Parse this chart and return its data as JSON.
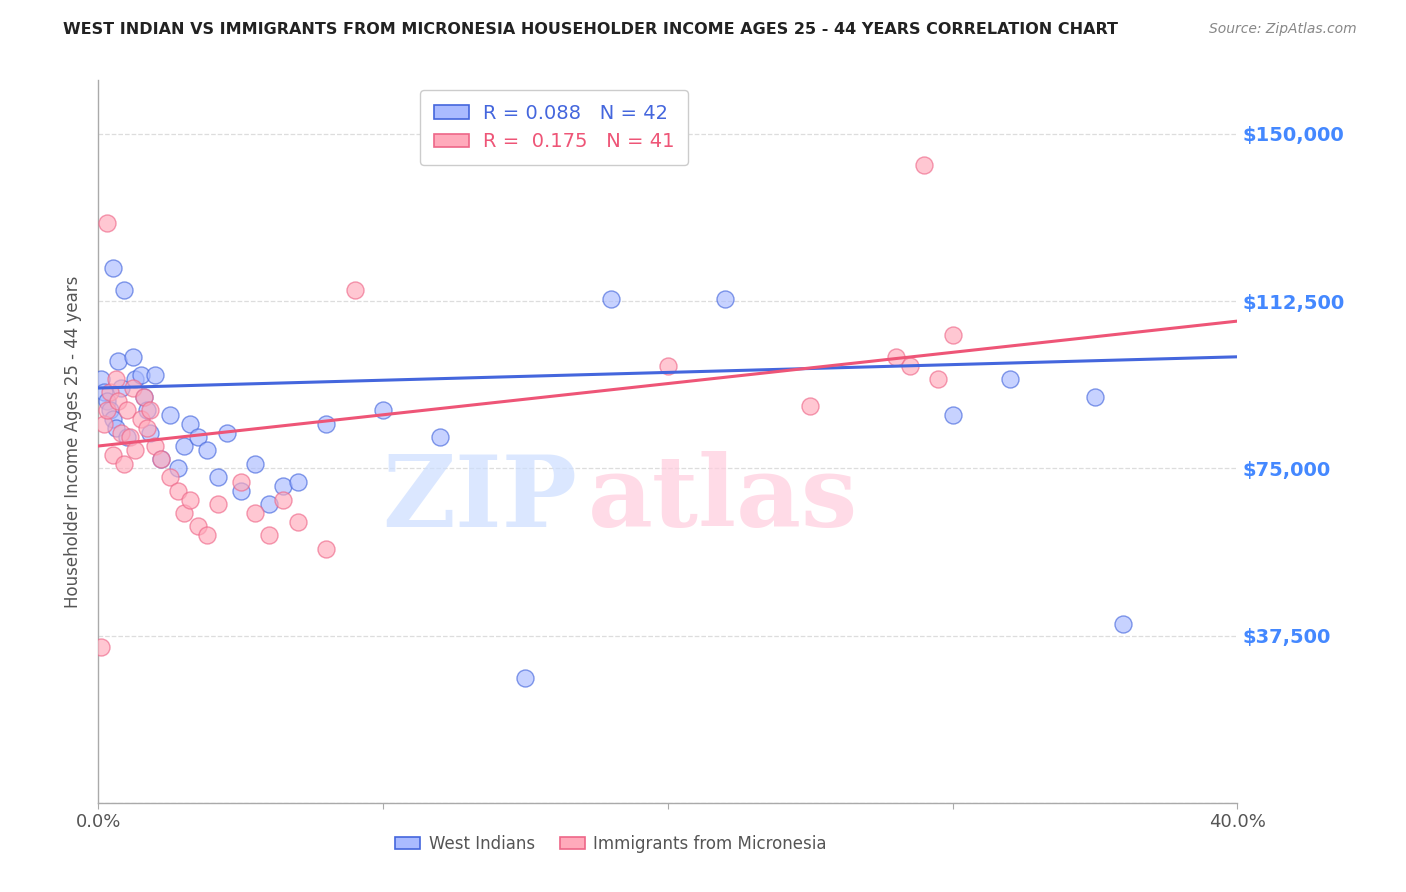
{
  "title": "WEST INDIAN VS IMMIGRANTS FROM MICRONESIA HOUSEHOLDER INCOME AGES 25 - 44 YEARS CORRELATION CHART",
  "source": "Source: ZipAtlas.com",
  "ylabel": "Householder Income Ages 25 - 44 years",
  "xlim": [
    0.0,
    0.4
  ],
  "ylim": [
    0,
    162000
  ],
  "yticks": [
    0,
    37500,
    75000,
    112500,
    150000
  ],
  "ytick_labels": [
    "",
    "$37,500",
    "$75,000",
    "$112,500",
    "$150,000"
  ],
  "xticks": [
    0.0,
    0.1,
    0.2,
    0.3,
    0.4
  ],
  "xtick_labels": [
    "0.0%",
    "",
    "",
    "",
    "40.0%"
  ],
  "blue_R": 0.088,
  "blue_N": 42,
  "pink_R": 0.175,
  "pink_N": 41,
  "blue_fill": "#aabbff",
  "pink_fill": "#ffaabb",
  "blue_edge": "#4466dd",
  "pink_edge": "#ee6688",
  "blue_line": "#4466dd",
  "pink_line": "#ee5577",
  "blue_label": "West Indians",
  "pink_label": "Immigrants from Micronesia",
  "bg": "#ffffff",
  "title_color": "#222222",
  "source_color": "#888888",
  "axis_label_color": "#555555",
  "tick_color": "#aaaaaa",
  "grid_color": "#dddddd",
  "right_tick_color": "#4488ff",
  "blue_x": [
    0.001,
    0.002,
    0.003,
    0.004,
    0.005,
    0.006,
    0.007,
    0.008,
    0.01,
    0.012,
    0.013,
    0.015,
    0.016,
    0.017,
    0.018,
    0.02,
    0.022,
    0.025,
    0.028,
    0.03,
    0.032,
    0.035,
    0.038,
    0.042,
    0.045,
    0.05,
    0.055,
    0.06,
    0.065,
    0.07,
    0.08,
    0.1,
    0.12,
    0.15,
    0.18,
    0.22,
    0.3,
    0.32,
    0.35,
    0.36,
    0.005,
    0.009
  ],
  "blue_y": [
    95000,
    92000,
    90000,
    88000,
    86000,
    84000,
    99000,
    93000,
    82000,
    100000,
    95000,
    96000,
    91000,
    88000,
    83000,
    96000,
    77000,
    87000,
    75000,
    80000,
    85000,
    82000,
    79000,
    73000,
    83000,
    70000,
    76000,
    67000,
    71000,
    72000,
    85000,
    88000,
    82000,
    28000,
    113000,
    113000,
    87000,
    95000,
    91000,
    40000,
    120000,
    115000
  ],
  "pink_x": [
    0.001,
    0.002,
    0.003,
    0.004,
    0.005,
    0.006,
    0.007,
    0.008,
    0.009,
    0.01,
    0.011,
    0.012,
    0.013,
    0.015,
    0.016,
    0.017,
    0.018,
    0.02,
    0.022,
    0.025,
    0.028,
    0.03,
    0.032,
    0.035,
    0.038,
    0.042,
    0.05,
    0.055,
    0.06,
    0.065,
    0.07,
    0.08,
    0.09,
    0.2,
    0.25,
    0.28,
    0.285,
    0.29,
    0.295,
    0.3,
    0.003
  ],
  "pink_y": [
    35000,
    85000,
    88000,
    92000,
    78000,
    95000,
    90000,
    83000,
    76000,
    88000,
    82000,
    93000,
    79000,
    86000,
    91000,
    84000,
    88000,
    80000,
    77000,
    73000,
    70000,
    65000,
    68000,
    62000,
    60000,
    67000,
    72000,
    65000,
    60000,
    68000,
    63000,
    57000,
    115000,
    98000,
    89000,
    100000,
    98000,
    143000,
    95000,
    105000,
    130000
  ]
}
